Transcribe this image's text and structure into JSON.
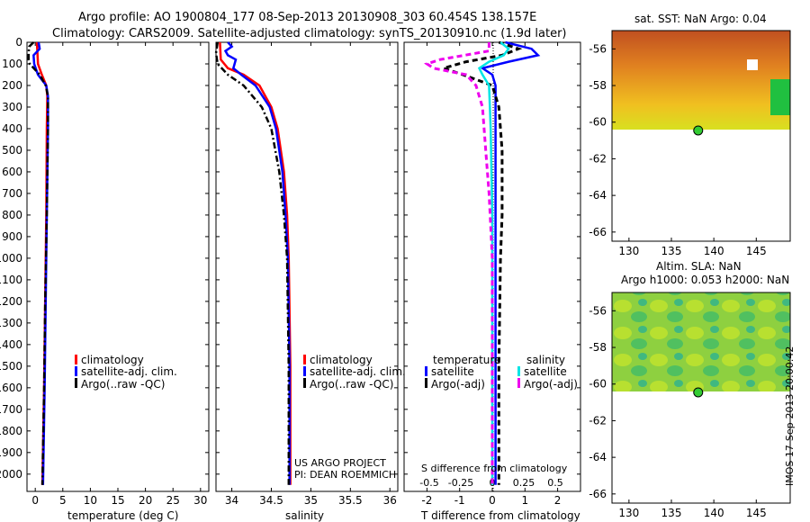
{
  "header": {
    "line1": "Argo profile: AO 1900804_177 08-Sep-2013 20130908_303 60.454S 138.157E",
    "line2": "Climatology: CARS2009. Satellite-adjusted climatology: synTS_20130910.nc (1.9d later)"
  },
  "colors": {
    "climatology": "#ff0000",
    "satellite": "#0000ff",
    "argo": "#000000",
    "salinity_satellite": "#00e5e5",
    "salinity_argo": "#ee00ee",
    "marker": "#33cc33"
  },
  "depth_ticks": [
    "0",
    "100",
    "200",
    "300",
    "400",
    "500",
    "600",
    "700",
    "800",
    "900",
    "1000",
    "1100",
    "1200",
    "1300",
    "1400",
    "1500",
    "1600",
    "1700",
    "1800",
    "1900",
    "2000"
  ],
  "chart_data": [
    {
      "type": "line",
      "xlabel": "temperature (deg C)",
      "ylabel": "",
      "xlim": [
        -1.5,
        31.5
      ],
      "ylim": [
        2080,
        0
      ],
      "x_ticks": [
        "0",
        "5",
        "10",
        "15",
        "20",
        "25",
        "30"
      ],
      "y_reversed": true,
      "legend": [
        "climatology",
        "satellite-adj. clim.",
        "Argo(..raw -QC)"
      ],
      "series": [
        {
          "name": "climatology",
          "depth": [
            0,
            50,
            100,
            150,
            200,
            250,
            400,
            800,
            1200,
            1600,
            2050
          ],
          "values": [
            0.3,
            0.4,
            0.5,
            1.2,
            2.0,
            2.2,
            2.1,
            2.0,
            1.8,
            1.6,
            1.3
          ]
        },
        {
          "name": "satellite-adj. clim.",
          "depth": [
            0,
            30,
            60,
            100,
            150,
            200,
            250,
            400,
            800,
            1200,
            1600,
            2050
          ],
          "values": [
            0.6,
            0.8,
            -0.3,
            -0.2,
            0.5,
            2.0,
            2.3,
            2.3,
            2.1,
            1.9,
            1.7,
            1.4
          ]
        },
        {
          "name": "Argo(..raw -QC)",
          "depth": [
            0,
            20,
            50,
            80,
            100,
            150,
            200,
            250,
            400,
            800,
            1200,
            1600,
            2050
          ],
          "values": [
            -0.3,
            -1.1,
            -1.2,
            -1.2,
            -1.0,
            0.8,
            1.9,
            2.3,
            2.3,
            2.1,
            1.8,
            1.6,
            1.3
          ]
        }
      ]
    },
    {
      "type": "line",
      "xlabel": "salinity",
      "ylabel": "",
      "xlim": [
        33.8,
        36.1
      ],
      "ylim": [
        2080,
        0
      ],
      "x_ticks": [
        "34",
        "34.5",
        "35",
        "35.5",
        "36"
      ],
      "y_reversed": true,
      "legend": [
        "climatology",
        "satellite-adj. clim.",
        "Argo(..raw -QC)"
      ],
      "annotation": [
        "US ARGO PROJECT",
        "PI: DEAN ROEMMICH"
      ],
      "series": [
        {
          "name": "climatology",
          "depth": [
            0,
            80,
            120,
            150,
            200,
            300,
            400,
            600,
            800,
            1000,
            1500,
            2050
          ],
          "values": [
            33.85,
            33.86,
            33.95,
            34.15,
            34.35,
            34.5,
            34.58,
            34.66,
            34.7,
            34.72,
            34.74,
            34.74
          ]
        },
        {
          "name": "satellite-adj. clim.",
          "depth": [
            0,
            20,
            40,
            60,
            80,
            120,
            150,
            200,
            300,
            400,
            600,
            800,
            1000,
            1500,
            2050
          ],
          "values": [
            33.95,
            34.0,
            33.92,
            33.95,
            34.05,
            34.02,
            34.12,
            34.3,
            34.48,
            34.56,
            34.64,
            34.68,
            34.71,
            34.73,
            34.73
          ]
        },
        {
          "name": "Argo(..raw -QC)",
          "depth": [
            0,
            50,
            100,
            150,
            200,
            300,
            400,
            600,
            800,
            1000,
            1500,
            2050
          ],
          "values": [
            33.82,
            33.8,
            33.82,
            33.95,
            34.15,
            34.38,
            34.5,
            34.6,
            34.66,
            34.7,
            34.72,
            34.72
          ]
        }
      ]
    },
    {
      "type": "line",
      "xlabel": "T difference from climatology",
      "top_label": "S difference from climatology",
      "xlim": [
        -2.7,
        2.7
      ],
      "ylim": [
        2080,
        0
      ],
      "x_ticks": [
        "-2",
        "-1",
        "0",
        "1",
        "2"
      ],
      "top_ticks": [
        "-0.5",
        "-0.25",
        "0",
        "0.25",
        "0.5"
      ],
      "y_reversed": true,
      "legend_groups": [
        {
          "title": "temperature",
          "entries": [
            "satellite",
            "Argo(-adj)"
          ]
        },
        {
          "title": "salinity",
          "entries": [
            "satellite",
            "Argo(-adj)"
          ]
        }
      ],
      "series": [
        {
          "name": "satellite",
          "group": "temperature",
          "depth": [
            0,
            30,
            60,
            90,
            120,
            150,
            200,
            300,
            500,
            1000,
            1500,
            2050
          ],
          "values": [
            0.4,
            1.2,
            1.4,
            0.5,
            -0.3,
            0.0,
            0.1,
            0.1,
            0.1,
            0.1,
            0.1,
            0.1
          ]
        },
        {
          "name": "Argo(-adj)",
          "group": "temperature",
          "depth": [
            0,
            30,
            60,
            90,
            120,
            150,
            200,
            300,
            500,
            800,
            1000,
            1500,
            2050
          ],
          "values": [
            0.2,
            0.8,
            0.3,
            -0.8,
            -1.5,
            -0.9,
            0.0,
            0.2,
            0.3,
            0.3,
            0.25,
            0.2,
            0.2
          ]
        },
        {
          "name": "satellite",
          "group": "salinity",
          "depth": [
            0,
            30,
            60,
            90,
            120,
            150,
            200,
            400,
            800,
            1200,
            1600,
            2050
          ],
          "values": [
            0.25,
            0.5,
            0.35,
            -0.1,
            -0.4,
            -0.3,
            -0.1,
            -0.05,
            0.0,
            0.0,
            0.0,
            0.0
          ]
        },
        {
          "name": "Argo(-adj)",
          "group": "salinity",
          "depth": [
            0,
            40,
            80,
            100,
            120,
            150,
            200,
            300,
            500,
            700,
            1000,
            1500,
            2050
          ],
          "values": [
            -0.1,
            -0.1,
            -1.6,
            -2.0,
            -1.8,
            -0.8,
            -0.5,
            -0.3,
            -0.2,
            -0.1,
            0.0,
            0.0,
            0.0
          ]
        }
      ]
    }
  ],
  "maps": [
    {
      "title": "sat. SST: NaN Argo: 0.04",
      "xlim": [
        128,
        149
      ],
      "ylim": [
        -66.5,
        -55
      ],
      "x_ticks": [
        "130",
        "135",
        "140",
        "145"
      ],
      "y_ticks": [
        "-56",
        "-58",
        "-60",
        "-62",
        "-64",
        "-66"
      ],
      "argo_position": {
        "lon": 138.157,
        "lat": -60.454
      }
    },
    {
      "title": "Altim. SLA: NaN",
      "subtitle": "Argo h1000: 0.053 h2000: NaN",
      "xlim": [
        128,
        149
      ],
      "ylim": [
        -66.5,
        -55
      ],
      "x_ticks": [
        "130",
        "135",
        "140",
        "145"
      ],
      "y_ticks": [
        "-56",
        "-58",
        "-60",
        "-62",
        "-64",
        "-66"
      ],
      "argo_position": {
        "lon": 138.157,
        "lat": -60.454
      }
    }
  ],
  "stamp": "IMOS 17-Sep-2013 20:00:42"
}
